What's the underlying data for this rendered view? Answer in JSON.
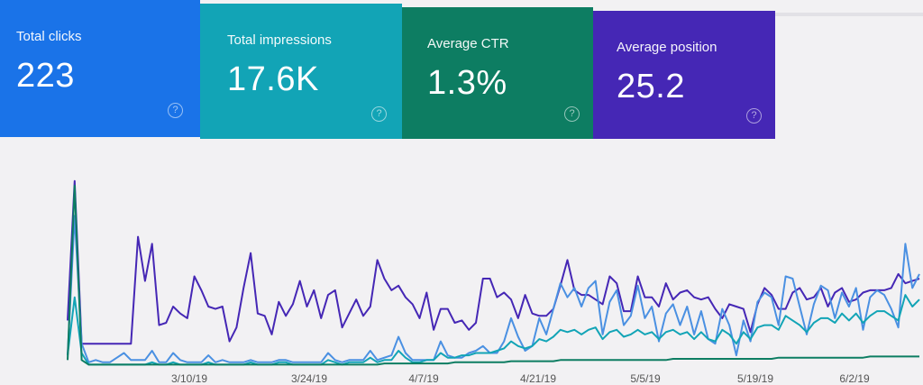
{
  "cards": [
    {
      "id": "clicks",
      "label": "Total clicks",
      "value": "223",
      "color": "#1a73e8"
    },
    {
      "id": "impressions",
      "label": "Total impressions",
      "value": "17.6K",
      "color": "#12a4b6"
    },
    {
      "id": "ctr",
      "label": "Average CTR",
      "value": "1.3%",
      "color": "#0d7d62"
    },
    {
      "id": "position",
      "label": "Average position",
      "value": "25.2",
      "color": "#4527b5"
    }
  ],
  "help_icon": "help-circle-icon",
  "chart_data": {
    "type": "line",
    "x_tick_labels": [
      "3/10/19",
      "3/24/19",
      "4/7/19",
      "4/21/19",
      "5/5/19",
      "5/19/19",
      "6/2/19"
    ],
    "grid": false,
    "legend": "none",
    "series": [
      {
        "color": "#4527b5",
        "values": [
          2,
          8,
          1,
          1,
          1,
          1,
          1,
          1,
          1,
          1,
          5.6,
          3.7,
          5.3,
          1.8,
          1.9,
          2.6,
          2.3,
          2.1,
          3.9,
          3.3,
          2.6,
          2.5,
          2.6,
          1.1,
          1.7,
          3.4,
          4.9,
          2.3,
          2.2,
          1.4,
          2.8,
          2.2,
          2.7,
          3.7,
          2.6,
          3.3,
          2.1,
          3.1,
          3.3,
          1.7,
          2.3,
          2.9,
          2.2,
          2.6,
          4.6,
          3.8,
          3.3,
          3.5,
          3.0,
          2.7,
          2.1,
          3.2,
          1.6,
          2.5,
          2.5,
          1.9,
          2.0,
          1.6,
          1.9,
          3.8,
          3.8,
          3.0,
          3.2,
          2.9,
          2.1,
          3.1,
          2.3,
          2.2,
          2.2,
          2.5,
          3.5,
          4.6,
          3.3,
          3.1,
          3.1,
          2.9,
          2.7,
          3.9,
          3.6,
          2.4,
          2.4,
          3.9,
          3.0,
          3.0,
          2.6,
          3.6,
          2.9,
          3.2,
          3.3,
          3.0,
          2.9,
          3.0,
          2.5,
          2.1,
          2.7,
          2.6,
          2.5,
          1.5,
          2.7,
          3.4,
          3.1,
          2.5,
          2.5,
          3.2,
          3.4,
          2.9,
          3.0,
          3.4,
          2.6,
          3.2,
          3.4,
          2.8,
          2.9,
          3.2,
          3.3,
          3.3,
          3.3,
          3.4,
          4.0,
          3.6,
          3.7,
          3.8
        ]
      },
      {
        "color": "#4a90e2",
        "values": [
          0.5,
          6.5,
          1.0,
          0.2,
          0.3,
          0.2,
          0.2,
          0.4,
          0.6,
          0.3,
          0.3,
          0.3,
          0.7,
          0.2,
          0.2,
          0.6,
          0.3,
          0.2,
          0.2,
          0.2,
          0.5,
          0.2,
          0.3,
          0.2,
          0.2,
          0.2,
          0.3,
          0.2,
          0.2,
          0.2,
          0.3,
          0.3,
          0.2,
          0.2,
          0.2,
          0.2,
          0.2,
          0.6,
          0.3,
          0.2,
          0.3,
          0.3,
          0.3,
          0.7,
          0.3,
          0.4,
          0.5,
          1.3,
          0.6,
          0.3,
          0.3,
          0.3,
          0.3,
          1.1,
          0.5,
          0.4,
          0.4,
          0.6,
          0.7,
          0.9,
          0.6,
          0.6,
          1.1,
          2.1,
          1.3,
          0.7,
          0.9,
          2.1,
          1.4,
          2.5,
          3.6,
          3.0,
          3.4,
          2.6,
          3.4,
          3.7,
          1.4,
          2.8,
          3.3,
          1.8,
          2.2,
          3.5,
          2.1,
          2.6,
          1.1,
          2.3,
          2.7,
          1.8,
          2.6,
          1.4,
          2.4,
          1.2,
          1.0,
          2.5,
          1.8,
          0.5,
          2.0,
          1.1,
          2.8,
          3.2,
          3.0,
          1.8,
          3.9,
          3.8,
          2.6,
          1.4,
          2.7,
          3.5,
          3.3,
          2.1,
          3.2,
          2.6,
          3.4,
          1.6,
          3.0,
          3.3,
          3.1,
          2.5,
          1.7,
          5.3,
          3.4,
          4.0
        ]
      },
      {
        "color": "#12a4b6",
        "values": [
          0.5,
          3.0,
          0.6,
          0.1,
          0.1,
          0.1,
          0.1,
          0.1,
          0.1,
          0.1,
          0.1,
          0.1,
          0.2,
          0.1,
          0.1,
          0.2,
          0.1,
          0.1,
          0.1,
          0.1,
          0.2,
          0.1,
          0.1,
          0.1,
          0.1,
          0.1,
          0.2,
          0.1,
          0.1,
          0.1,
          0.2,
          0.2,
          0.1,
          0.1,
          0.1,
          0.1,
          0.1,
          0.3,
          0.2,
          0.1,
          0.2,
          0.2,
          0.2,
          0.4,
          0.2,
          0.3,
          0.3,
          0.7,
          0.4,
          0.2,
          0.2,
          0.3,
          0.3,
          0.6,
          0.4,
          0.4,
          0.5,
          0.5,
          0.6,
          0.6,
          0.6,
          0.7,
          0.8,
          1.1,
          0.9,
          0.8,
          0.9,
          1.2,
          1.1,
          1.3,
          1.6,
          1.5,
          1.6,
          1.4,
          1.6,
          1.7,
          1.2,
          1.5,
          1.6,
          1.3,
          1.4,
          1.6,
          1.4,
          1.5,
          1.2,
          1.5,
          1.6,
          1.4,
          1.5,
          1.2,
          1.5,
          1.2,
          1.1,
          1.6,
          1.4,
          1.0,
          1.5,
          1.2,
          1.7,
          1.8,
          1.8,
          1.6,
          2.2,
          2.0,
          1.8,
          1.5,
          1.9,
          2.1,
          2.1,
          1.9,
          2.3,
          2.0,
          2.3,
          1.9,
          2.2,
          2.4,
          2.4,
          2.2,
          2.0,
          3.1,
          2.6,
          2.9
        ]
      },
      {
        "color": "#0d7d62",
        "values": [
          0.3,
          7.8,
          0.3,
          0.1,
          0.1,
          0.1,
          0.1,
          0.1,
          0.1,
          0.1,
          0.1,
          0.1,
          0.1,
          0.1,
          0.1,
          0.1,
          0.1,
          0.1,
          0.1,
          0.1,
          0.1,
          0.1,
          0.1,
          0.1,
          0.1,
          0.1,
          0.1,
          0.1,
          0.1,
          0.1,
          0.1,
          0.1,
          0.1,
          0.1,
          0.1,
          0.1,
          0.1,
          0.1,
          0.1,
          0.1,
          0.1,
          0.1,
          0.1,
          0.1,
          0.1,
          0.15,
          0.15,
          0.15,
          0.15,
          0.15,
          0.15,
          0.15,
          0.15,
          0.15,
          0.15,
          0.2,
          0.2,
          0.2,
          0.2,
          0.2,
          0.2,
          0.2,
          0.2,
          0.25,
          0.25,
          0.25,
          0.25,
          0.25,
          0.25,
          0.25,
          0.3,
          0.3,
          0.3,
          0.3,
          0.3,
          0.3,
          0.3,
          0.3,
          0.3,
          0.3,
          0.3,
          0.3,
          0.3,
          0.3,
          0.3,
          0.3,
          0.35,
          0.35,
          0.35,
          0.35,
          0.35,
          0.35,
          0.35,
          0.35,
          0.35,
          0.35,
          0.35,
          0.35,
          0.35,
          0.35,
          0.35,
          0.4,
          0.4,
          0.4,
          0.4,
          0.4,
          0.4,
          0.4,
          0.4,
          0.4,
          0.4,
          0.4,
          0.4,
          0.4,
          0.45,
          0.45,
          0.45,
          0.45,
          0.45,
          0.45,
          0.45,
          0.45
        ]
      }
    ]
  }
}
